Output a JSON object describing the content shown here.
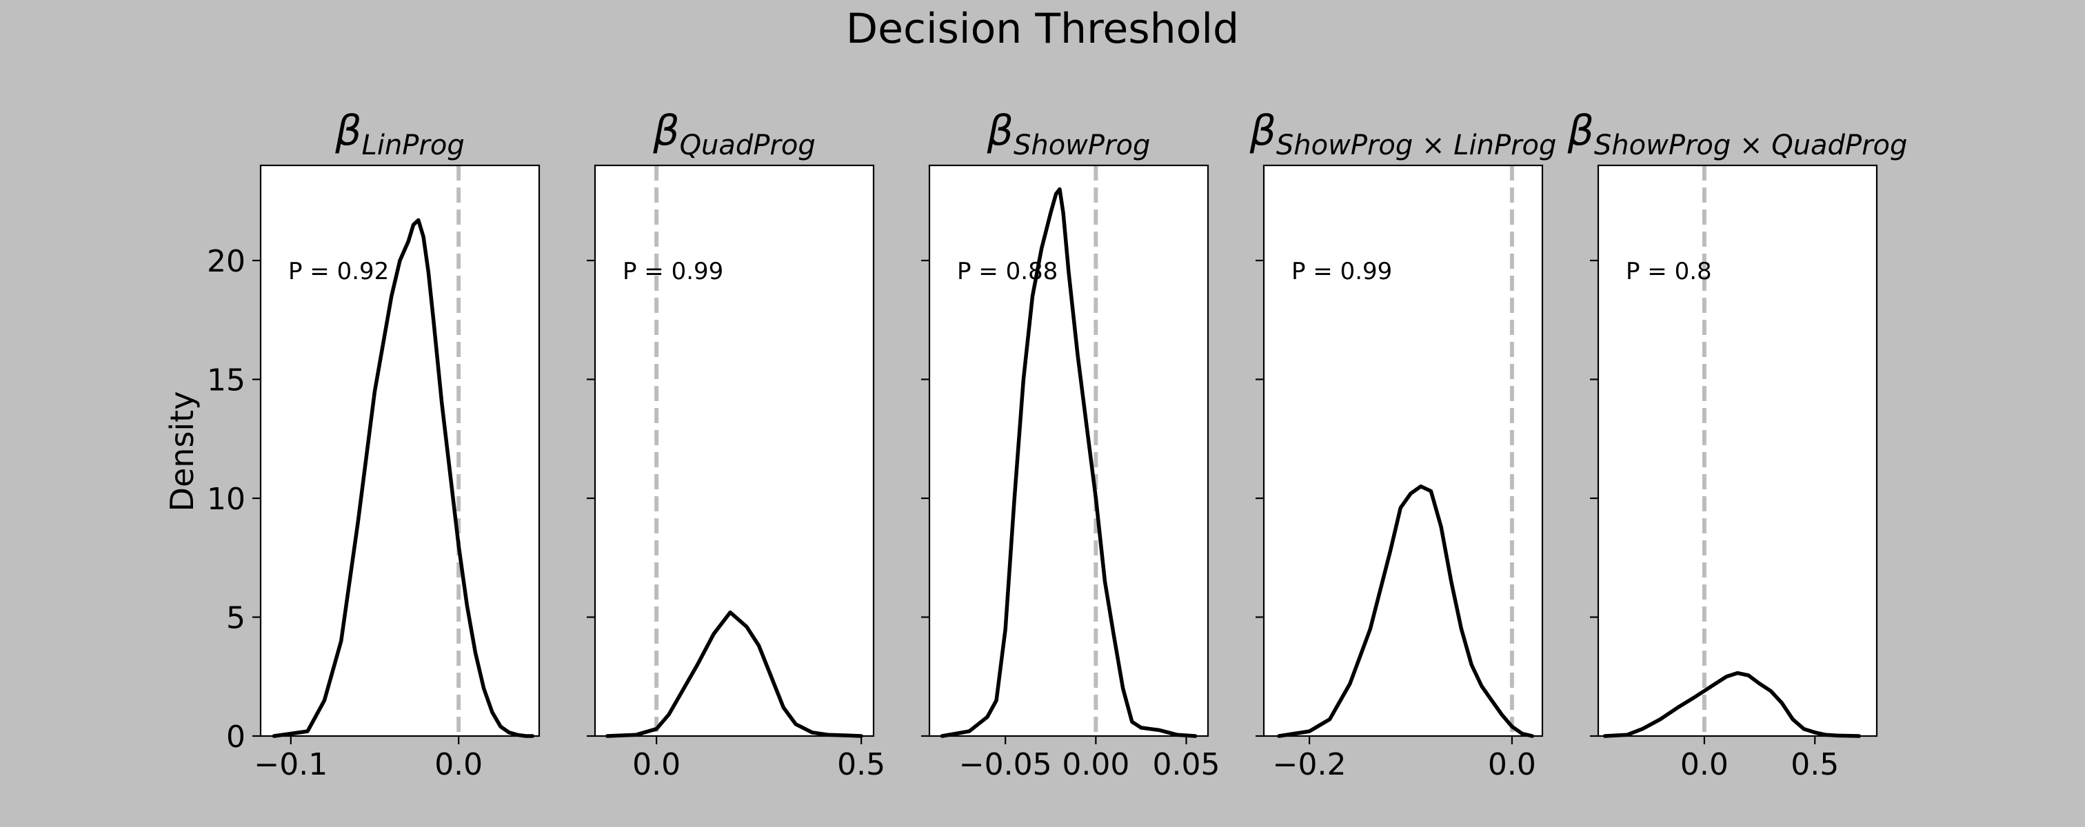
{
  "figure": {
    "title": "Decision Threshold",
    "ylabel": "Density",
    "background": "#bfbfbf",
    "panel_background": "#ffffff",
    "line_color": "#000000",
    "ref_line_color": "#bcbcbc",
    "y_ticks": [
      0,
      5,
      10,
      15,
      20
    ],
    "ylim": [
      0,
      24
    ]
  },
  "chart_data": [
    {
      "type": "line",
      "title_base": "β",
      "title_sub": "LinProg",
      "annotation": "P = 0.92",
      "ref_x": 0.0,
      "xlim": [
        -0.118,
        0.048
      ],
      "x_ticks": [
        -0.1,
        0.0
      ],
      "x_tick_labels": [
        "−0.1",
        "0.0"
      ],
      "x": [
        -0.11,
        -0.09,
        -0.08,
        -0.07,
        -0.06,
        -0.05,
        -0.04,
        -0.035,
        -0.03,
        -0.027,
        -0.024,
        -0.021,
        -0.018,
        -0.015,
        -0.01,
        -0.005,
        0.0,
        0.005,
        0.01,
        0.015,
        0.02,
        0.025,
        0.03,
        0.035,
        0.04,
        0.044
      ],
      "y": [
        0,
        0.2,
        1.5,
        4,
        9,
        14.5,
        18.5,
        20,
        20.8,
        21.5,
        21.7,
        21,
        19.5,
        17.5,
        14,
        11,
        8,
        5.5,
        3.5,
        2,
        1,
        0.4,
        0.15,
        0.05,
        0,
        0
      ]
    },
    {
      "type": "line",
      "title_base": "β",
      "title_sub": "QuadProg",
      "annotation": "P = 0.99",
      "ref_x": 0.0,
      "xlim": [
        -0.15,
        0.53
      ],
      "x_ticks": [
        0.0,
        0.5
      ],
      "x_tick_labels": [
        "0.0",
        "0.5"
      ],
      "x": [
        -0.12,
        -0.05,
        0.0,
        0.03,
        0.06,
        0.1,
        0.14,
        0.18,
        0.22,
        0.25,
        0.28,
        0.31,
        0.34,
        0.38,
        0.42,
        0.47,
        0.5
      ],
      "y": [
        0,
        0.05,
        0.3,
        0.9,
        1.8,
        3.0,
        4.3,
        5.2,
        4.6,
        3.8,
        2.5,
        1.2,
        0.5,
        0.15,
        0.05,
        0.02,
        0
      ]
    },
    {
      "type": "line",
      "title_base": "β",
      "title_sub": "ShowProg",
      "annotation": "P = 0.88",
      "ref_x": 0.0,
      "xlim": [
        -0.092,
        0.062
      ],
      "x_ticks": [
        -0.05,
        0.0,
        0.05
      ],
      "x_tick_labels": [
        "−0.05",
        "0.00",
        "0.05"
      ],
      "x": [
        -0.085,
        -0.07,
        -0.06,
        -0.055,
        -0.05,
        -0.045,
        -0.04,
        -0.035,
        -0.03,
        -0.025,
        -0.022,
        -0.02,
        -0.018,
        -0.015,
        -0.01,
        -0.005,
        0.0,
        0.005,
        0.01,
        0.015,
        0.02,
        0.025,
        0.03,
        0.035,
        0.04,
        0.045,
        0.055
      ],
      "y": [
        0,
        0.2,
        0.8,
        1.5,
        4.5,
        10,
        15,
        18.5,
        20.5,
        22,
        22.8,
        23,
        22,
        19.5,
        16,
        13,
        10,
        6.5,
        4.2,
        2,
        0.6,
        0.35,
        0.3,
        0.25,
        0.15,
        0.05,
        0
      ]
    },
    {
      "type": "line",
      "title_base": "β",
      "title_sub": "ShowProg × LinProg",
      "annotation": "P = 0.99",
      "ref_x": 0.0,
      "xlim": [
        -0.245,
        0.03
      ],
      "x_ticks": [
        -0.2,
        0.0
      ],
      "x_tick_labels": [
        "−0.2",
        "0.0"
      ],
      "x": [
        -0.23,
        -0.2,
        -0.18,
        -0.16,
        -0.14,
        -0.12,
        -0.11,
        -0.1,
        -0.09,
        -0.08,
        -0.07,
        -0.06,
        -0.05,
        -0.04,
        -0.03,
        -0.02,
        -0.01,
        0.0,
        0.01,
        0.02
      ],
      "y": [
        0,
        0.2,
        0.7,
        2.2,
        4.5,
        7.8,
        9.6,
        10.2,
        10.5,
        10.3,
        8.8,
        6.5,
        4.5,
        3.0,
        2.1,
        1.5,
        0.9,
        0.4,
        0.1,
        0
      ]
    },
    {
      "type": "line",
      "title_base": "β",
      "title_sub": "ShowProg × QuadProg",
      "annotation": "P = 0.8",
      "ref_x": 0.0,
      "xlim": [
        -0.48,
        0.78
      ],
      "x_ticks": [
        0.0,
        0.5
      ],
      "x_tick_labels": [
        "0.0",
        "0.5"
      ],
      "x": [
        -0.45,
        -0.35,
        -0.28,
        -0.2,
        -0.12,
        -0.05,
        0.0,
        0.05,
        0.1,
        0.15,
        0.2,
        0.25,
        0.3,
        0.35,
        0.4,
        0.45,
        0.5,
        0.55,
        0.6,
        0.7
      ],
      "y": [
        0,
        0.05,
        0.3,
        0.7,
        1.2,
        1.6,
        1.9,
        2.2,
        2.5,
        2.65,
        2.55,
        2.2,
        1.9,
        1.4,
        0.7,
        0.3,
        0.15,
        0.05,
        0.02,
        0
      ]
    }
  ]
}
